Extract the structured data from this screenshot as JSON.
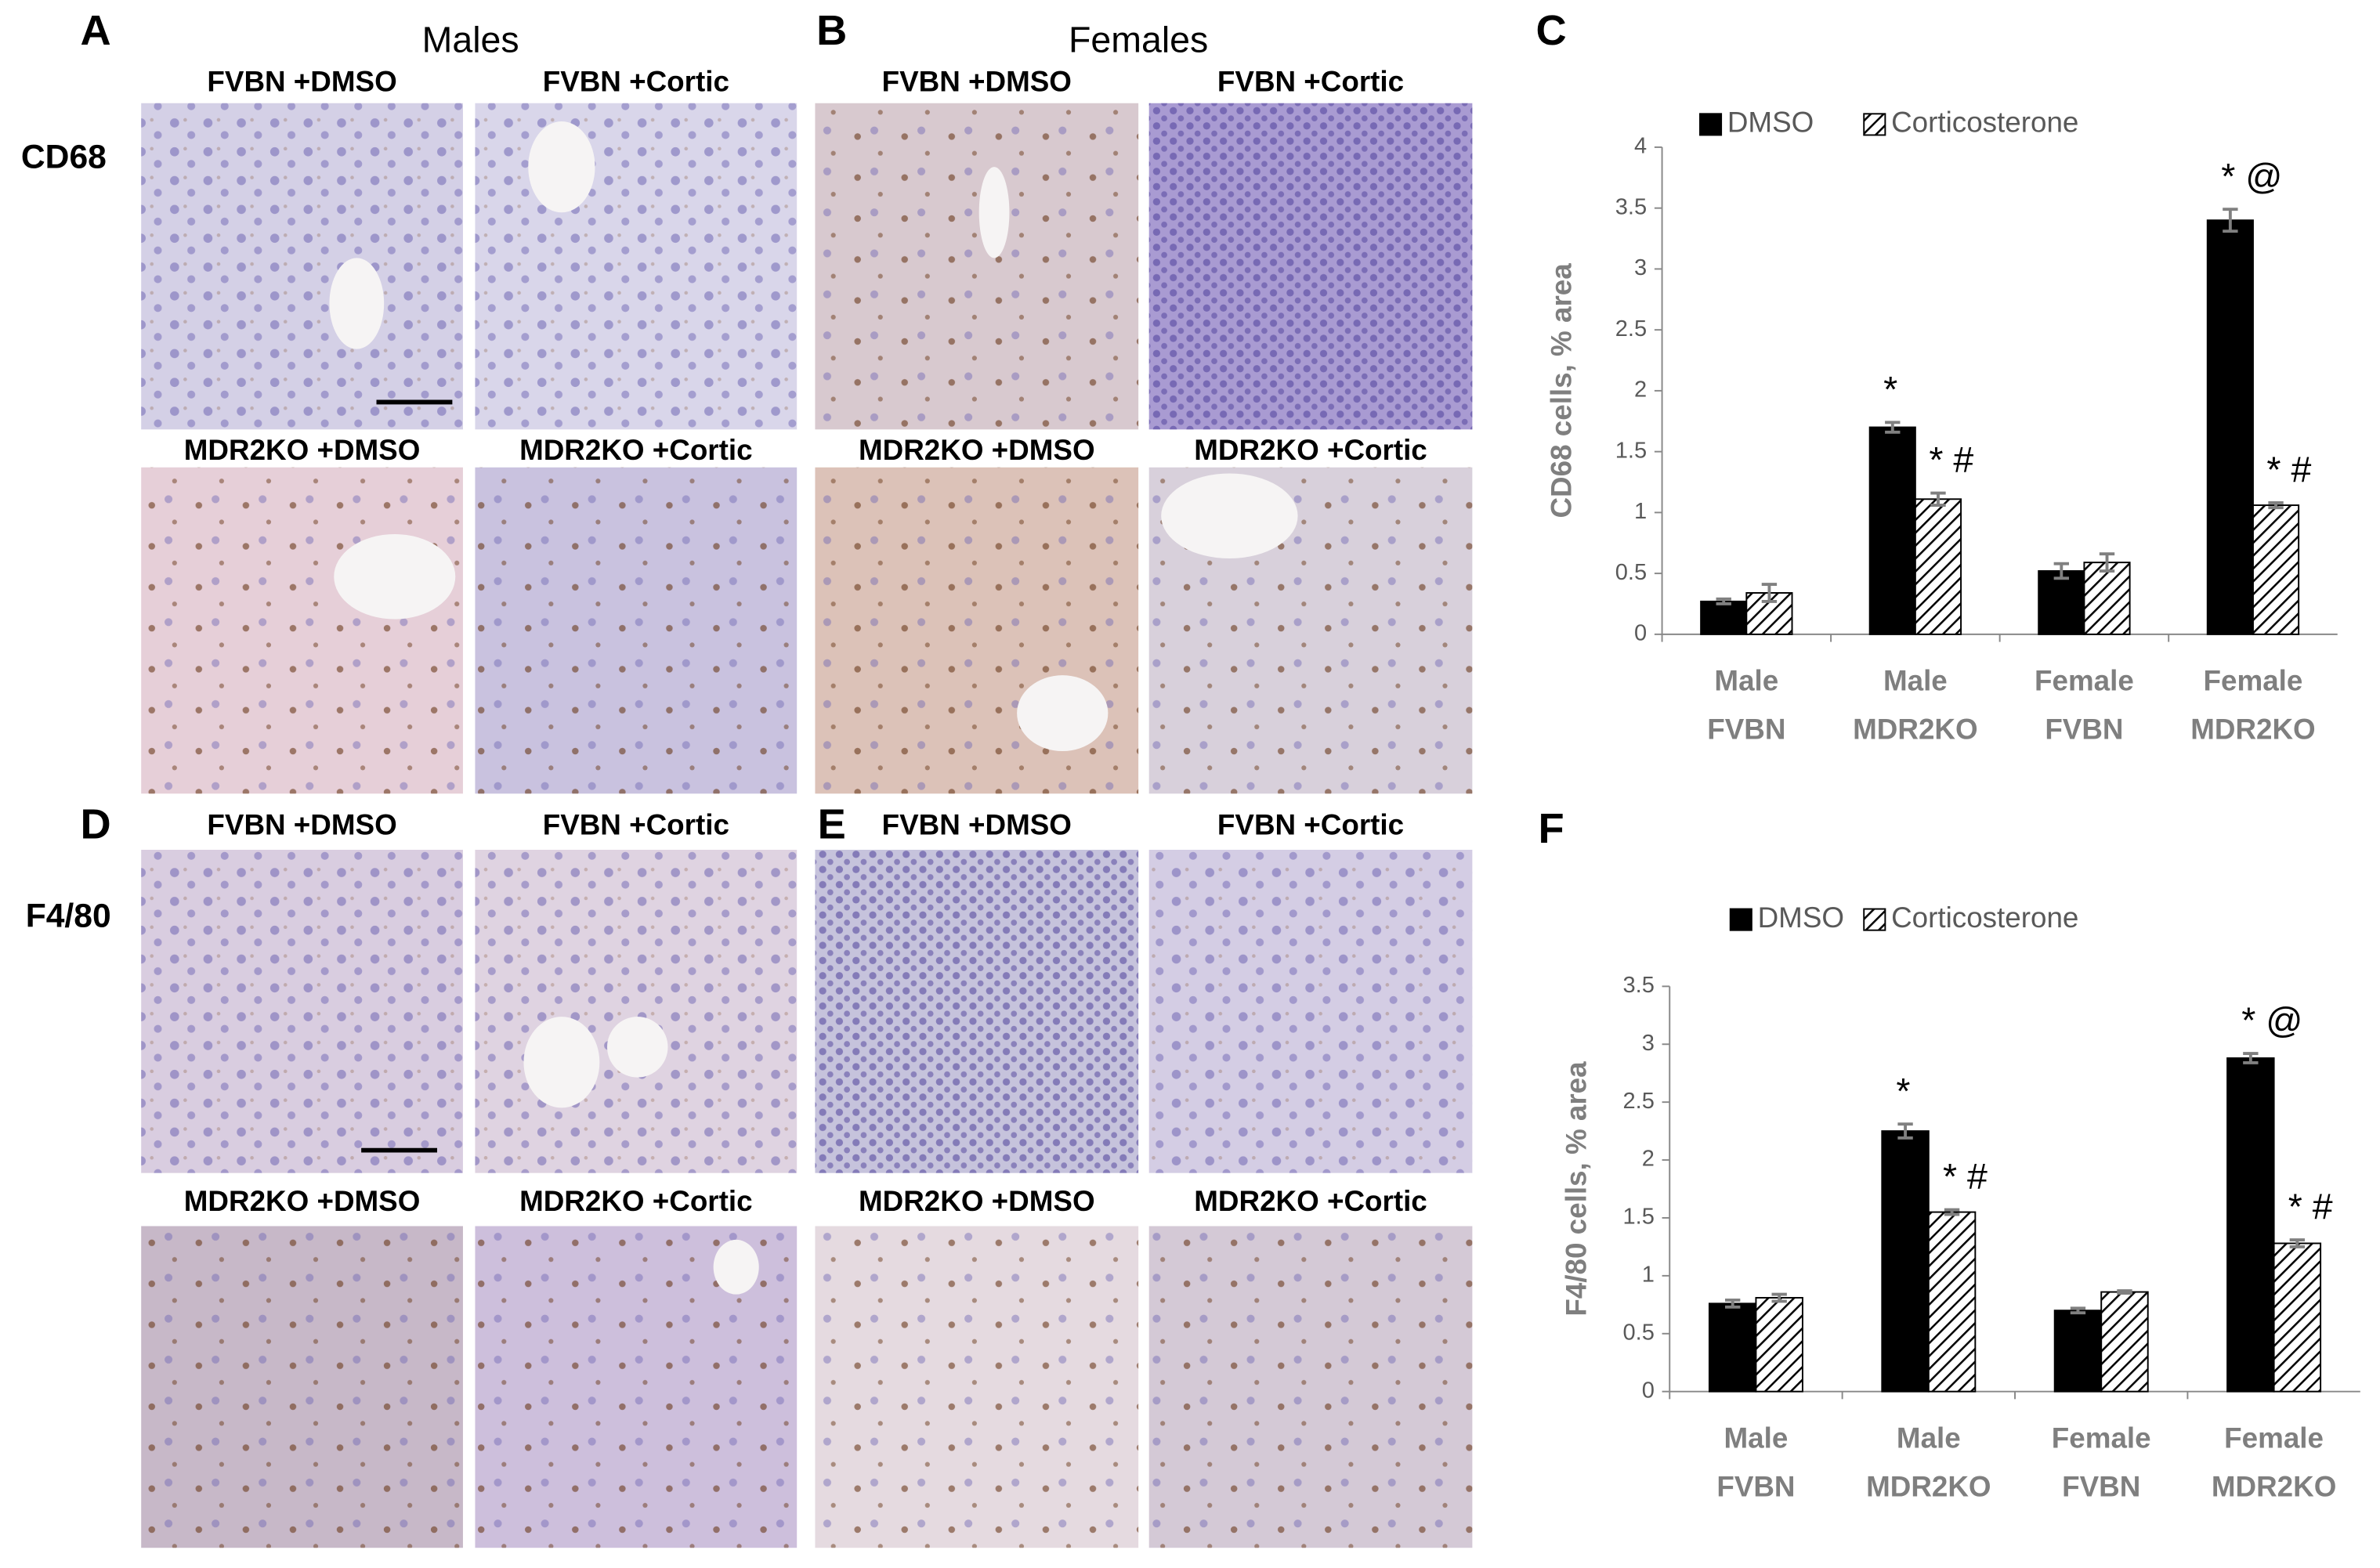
{
  "panel_labels": [
    "A",
    "B",
    "C",
    "D",
    "E",
    "F"
  ],
  "groups": [
    "Males",
    "Females"
  ],
  "stains": [
    "CD68",
    "F4/80"
  ],
  "captions": [
    [
      "FVBN +DMSO",
      "FVBN +Cortic",
      "FVBN +DMSO",
      "FVBN +Cortic"
    ],
    [
      "MDR2KO +DMSO",
      "MDR2KO +Cortic",
      "MDR2KO +DMSO",
      "MDR2KO +Cortic"
    ],
    [
      "FVBN +DMSO",
      "FVBN +Cortic",
      "FVBN +DMSO",
      "FVBN +Cortic"
    ],
    [
      "MDR2KO +DMSO",
      "MDR2KO +Cortic",
      "MDR2KO +DMSO",
      "MDR2KO +Cortic"
    ]
  ],
  "chart_data": [
    {
      "type": "bar",
      "ylabel": "CD68 cells, % area",
      "categories": [
        [
          "Male",
          "FVBN"
        ],
        [
          "Male",
          "MDR2KO"
        ],
        [
          "Female",
          "FVBN"
        ],
        [
          "Female",
          "MDR2KO"
        ]
      ],
      "series": [
        {
          "name": "DMSO",
          "color": "#000000",
          "pattern": "solid",
          "values": [
            0.27,
            1.7,
            0.52,
            3.4
          ],
          "errors": [
            0.02,
            0.04,
            0.06,
            0.09
          ],
          "markers": [
            null,
            "*",
            null,
            "* @"
          ]
        },
        {
          "name": "Corticosterone",
          "color": "#000000",
          "pattern": "hatch",
          "values": [
            0.34,
            1.11,
            0.59,
            1.06
          ],
          "errors": [
            0.07,
            0.05,
            0.07,
            0.02
          ],
          "markers": [
            null,
            "* #",
            null,
            "* #"
          ]
        }
      ],
      "ylim": [
        0,
        4
      ],
      "yticks": [
        0,
        0.5,
        1,
        1.5,
        2,
        2.5,
        3,
        3.5,
        4
      ],
      "grid": false,
      "legend": "top"
    },
    {
      "type": "bar",
      "ylabel": "F4/80 cells, % area",
      "categories": [
        [
          "Male",
          "FVBN"
        ],
        [
          "Male",
          "MDR2KO"
        ],
        [
          "Female",
          "FVBN"
        ],
        [
          "Female",
          "MDR2KO"
        ]
      ],
      "series": [
        {
          "name": "DMSO",
          "color": "#000000",
          "pattern": "solid",
          "values": [
            0.76,
            2.25,
            0.7,
            2.88
          ],
          "errors": [
            0.03,
            0.06,
            0.02,
            0.04
          ],
          "markers": [
            null,
            "*",
            null,
            "* @"
          ]
        },
        {
          "name": "Corticosterone",
          "color": "#000000",
          "pattern": "hatch",
          "values": [
            0.81,
            1.55,
            0.86,
            1.28
          ],
          "errors": [
            0.03,
            0.02,
            0.01,
            0.03
          ],
          "markers": [
            null,
            "* #",
            null,
            "* #"
          ]
        }
      ],
      "ylim": [
        0,
        3.5
      ],
      "yticks": [
        0,
        0.5,
        1,
        1.5,
        2,
        2.5,
        3,
        3.5
      ],
      "grid": false,
      "legend": "top"
    }
  ]
}
